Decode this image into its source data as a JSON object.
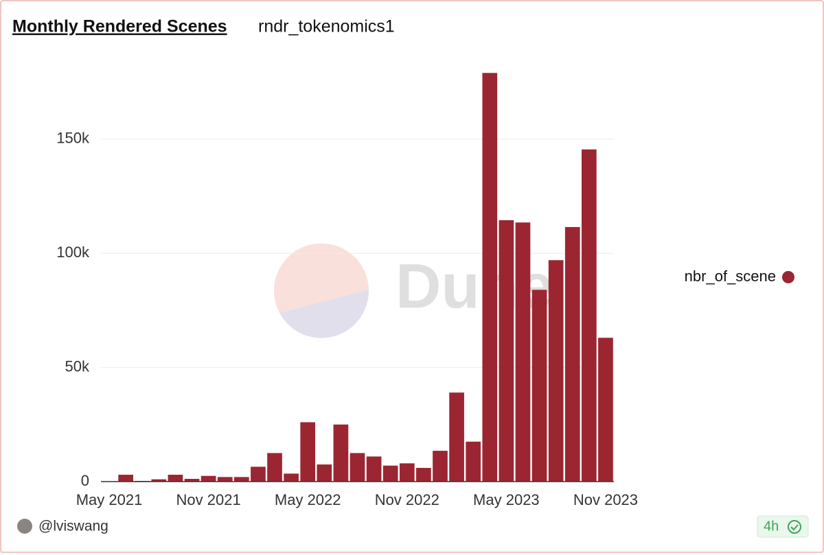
{
  "chart_data": {
    "type": "bar",
    "title": "Monthly Rendered Scenes",
    "subtitle": "rndr_tokenomics1",
    "watermark": "Dune",
    "author": "@lviswang",
    "freshness": "4h",
    "categories": [
      "May 2021",
      null,
      null,
      null,
      null,
      null,
      "Nov 2021",
      null,
      null,
      null,
      null,
      null,
      "May 2022",
      null,
      null,
      null,
      null,
      null,
      "Nov 2022",
      null,
      null,
      null,
      null,
      null,
      "May 2023",
      null,
      null,
      null,
      null,
      null,
      "Nov 2023"
    ],
    "series": [
      {
        "name": "nbr_of_scene",
        "color": "#9b2632",
        "values": [
          0,
          3000,
          300,
          1000,
          3000,
          1200,
          2500,
          2000,
          2000,
          6500,
          12500,
          3500,
          26000,
          7500,
          25000,
          12500,
          11000,
          7000,
          8000,
          6000,
          13500,
          39000,
          17500,
          179000,
          114500,
          113500,
          84000,
          97000,
          111500,
          145500,
          63000
        ]
      }
    ],
    "ylim": [
      0,
      180000
    ],
    "yticks": [
      0,
      {
        "value": 50000,
        "label": "50k"
      },
      {
        "value": 100000,
        "label": "100k"
      },
      {
        "value": 150000,
        "label": "150k"
      }
    ],
    "grid": true,
    "legend": "right"
  }
}
